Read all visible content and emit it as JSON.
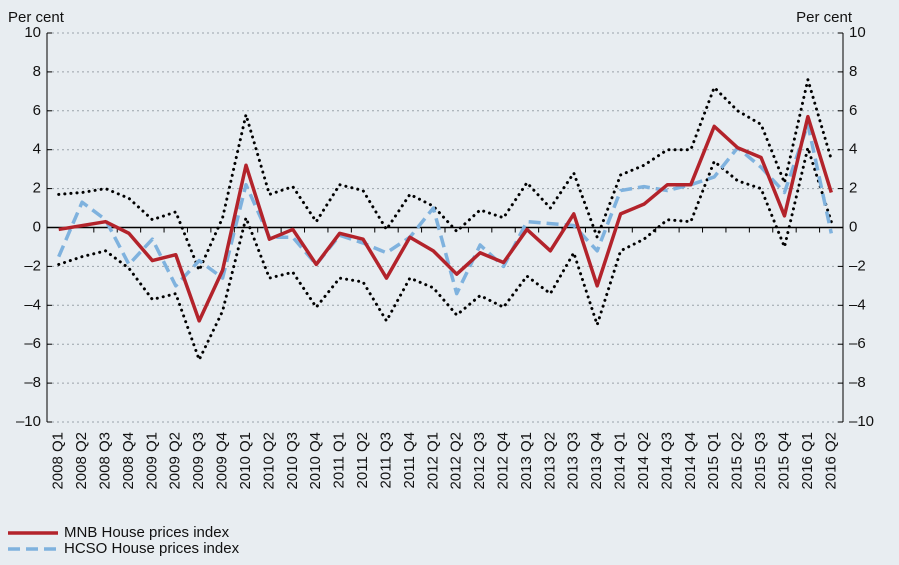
{
  "chart_data": {
    "type": "line",
    "y_label": "Per cent",
    "y2_label": "Per cent",
    "categories": [
      "2008 Q1",
      "2008 Q2",
      "2008 Q3",
      "2008 Q4",
      "2009 Q1",
      "2009 Q2",
      "2009 Q3",
      "2009 Q4",
      "2010 Q1",
      "2010 Q2",
      "2010 Q3",
      "2010 Q4",
      "2011 Q1",
      "2011 Q2",
      "2011 Q3",
      "2011 Q4",
      "2012 Q1",
      "2012 Q2",
      "2012 Q3",
      "2012 Q4",
      "2013 Q1",
      "2013 Q2",
      "2013 Q3",
      "2013 Q4",
      "2014 Q1",
      "2014 Q2",
      "2014 Q3",
      "2014 Q4",
      "2015 Q1",
      "2015 Q2",
      "2015 Q3",
      "2015 Q4",
      "2016 Q1",
      "2016 Q2"
    ],
    "series": [
      {
        "color": "#000000",
        "style": "dotted",
        "values": [
          1.7,
          1.8,
          2.0,
          1.5,
          0.4,
          0.8,
          -2.2,
          0.5,
          5.8,
          1.7,
          2.1,
          0.3,
          2.2,
          1.9,
          -0.1,
          1.7,
          1.1,
          -0.2,
          0.9,
          0.5,
          2.3,
          1.0,
          2.8,
          -0.5,
          2.7,
          3.2,
          4.0,
          4.0,
          7.2,
          6.0,
          5.3,
          2.3,
          7.6,
          3.5
        ]
      },
      {
        "color": "#000000",
        "style": "dotted",
        "values": [
          -1.9,
          -1.5,
          -1.2,
          -2.1,
          -3.7,
          -3.4,
          -6.8,
          -4.3,
          0.5,
          -2.6,
          -2.3,
          -4.1,
          -2.6,
          -2.8,
          -4.8,
          -2.6,
          -3.1,
          -4.5,
          -3.5,
          -4.1,
          -2.5,
          -3.4,
          -1.3,
          -5.0,
          -1.2,
          -0.6,
          0.4,
          0.3,
          3.4,
          2.4,
          2.0,
          -1.0,
          4.1,
          0.3
        ]
      },
      {
        "name": "HCSO House prices index",
        "color": "#7fb2de",
        "style": "dashed",
        "values": [
          -1.5,
          1.3,
          0.4,
          -1.9,
          -0.6,
          -3.0,
          -1.7,
          -2.6,
          2.2,
          -0.5,
          -0.5,
          -1.9,
          -0.4,
          -0.8,
          -1.3,
          -0.5,
          1.0,
          -3.4,
          -0.9,
          -2.0,
          0.3,
          0.2,
          0.1,
          -1.2,
          1.9,
          2.1,
          1.9,
          2.2,
          2.6,
          4.1,
          3.1,
          1.8,
          5.3,
          -0.3
        ]
      },
      {
        "name": "MNB House prices index",
        "color": "#b3232b",
        "style": "solid",
        "values": [
          -0.1,
          0.1,
          0.3,
          -0.3,
          -1.7,
          -1.4,
          -4.8,
          -2.2,
          3.2,
          -0.6,
          -0.1,
          -1.9,
          -0.3,
          -0.6,
          -2.6,
          -0.5,
          -1.2,
          -2.4,
          -1.3,
          -1.8,
          -0.1,
          -1.2,
          0.7,
          -3.0,
          0.7,
          1.2,
          2.2,
          2.2,
          5.2,
          4.1,
          3.6,
          0.6,
          5.7,
          1.8
        ]
      }
    ],
    "legend_order": [
      3,
      2
    ],
    "ylim": [
      -10,
      10
    ],
    "yticks": [
      {
        "value": -10,
        "label": "–10"
      },
      {
        "value": -8,
        "label": "–8"
      },
      {
        "value": -6,
        "label": "–6"
      },
      {
        "value": -4,
        "label": "–4"
      },
      {
        "value": -2,
        "label": "–2"
      },
      0,
      2,
      4,
      6,
      8,
      10
    ],
    "y2lim": [
      -10,
      10
    ],
    "y2ticks": [
      {
        "value": -10,
        "label": "–10"
      },
      {
        "value": -8,
        "label": "–8"
      },
      {
        "value": -6,
        "label": "–6"
      },
      {
        "value": -4,
        "label": "–4"
      },
      {
        "value": -2,
        "label": "–2"
      },
      0,
      2,
      4,
      6,
      8,
      10
    ],
    "grid": true
  }
}
